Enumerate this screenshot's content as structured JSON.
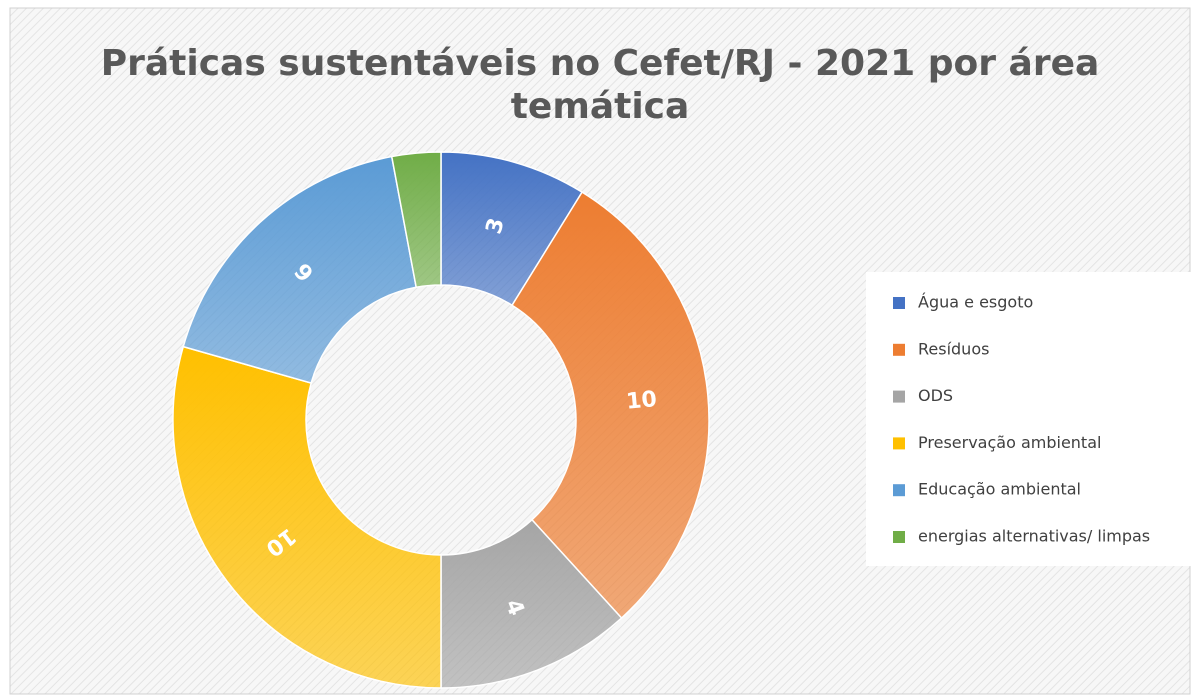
{
  "chart_data": {
    "type": "donut",
    "title": "Práticas sustentáveis no Cefet/RJ - 2021 por área temática",
    "categories": [
      "Água e esgoto",
      "Resíduos",
      "ODS",
      "Preservação ambiental",
      "Educação ambiental",
      "energias alternativas/ limpas"
    ],
    "values": [
      3,
      10,
      4,
      10,
      6,
      1
    ],
    "value_labels": [
      "3",
      "10",
      "4",
      "10",
      "6",
      null
    ],
    "colors": [
      "#4472c4",
      "#ed7d31",
      "#a5a5a5",
      "#ffc000",
      "#5b9bd5",
      "#70ad47"
    ],
    "legend": "right"
  }
}
